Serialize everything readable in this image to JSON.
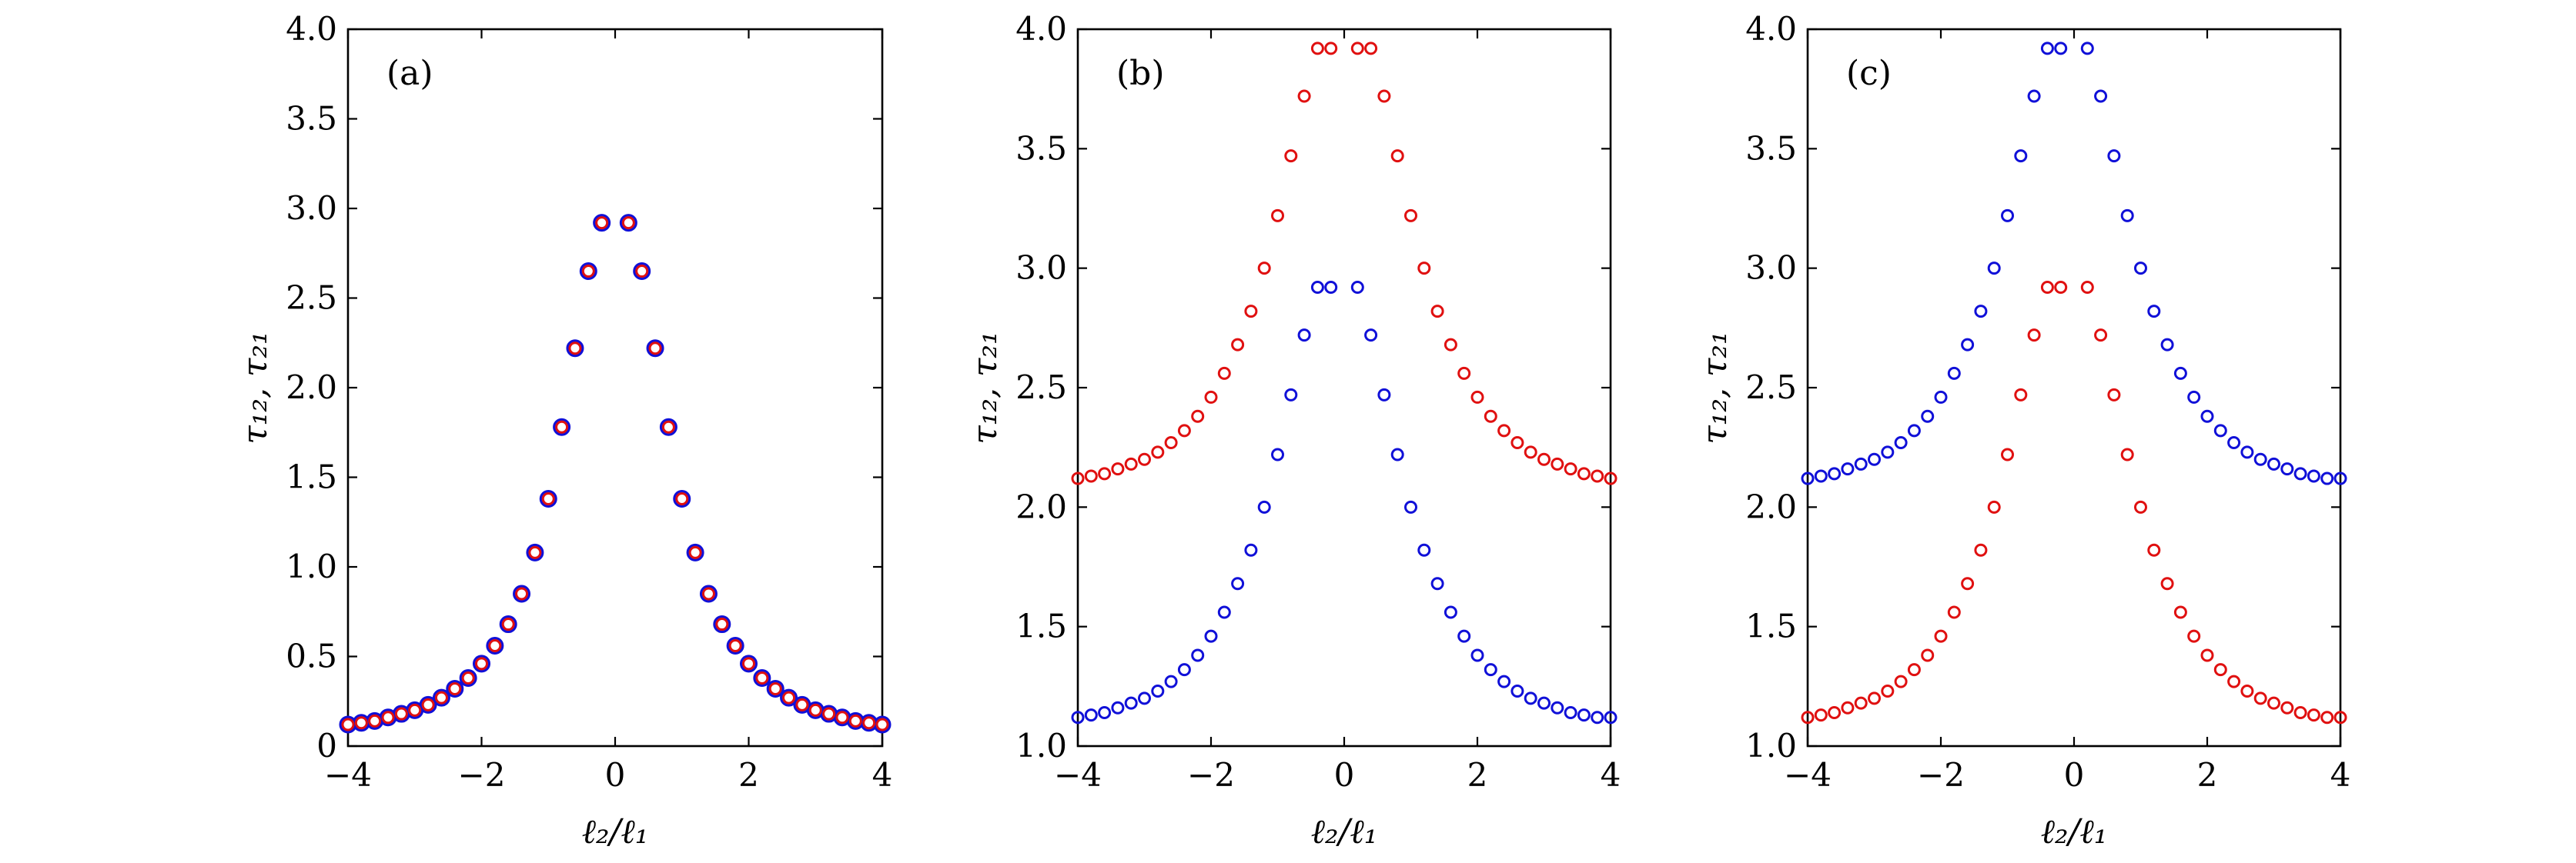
{
  "colors": {
    "blue": "#1010d8",
    "red": "#e01010"
  },
  "chart_data": [
    {
      "type": "scatter",
      "panel_label": "(a)",
      "xlabel": "ℓ₂/ℓ₁",
      "ylabel": "τ₁₂, τ₂₁",
      "xlim": [
        -4,
        4
      ],
      "ylim": [
        0,
        4
      ],
      "xticks": [
        -4,
        -2,
        0,
        2,
        4
      ],
      "xtick_labels": [
        "−4",
        "−2",
        "0",
        "2",
        "4"
      ],
      "yticks": [
        0,
        0.5,
        1.0,
        1.5,
        2.0,
        2.5,
        3.0,
        3.5,
        4.0
      ],
      "ytick_labels": [
        "0",
        "0.5",
        "1.0",
        "1.5",
        "2.0",
        "2.5",
        "3.0",
        "3.5",
        "4.0"
      ],
      "grid": false,
      "series": [
        {
          "marker": "open-circle-thick",
          "color": "blue",
          "x": [
            -4.0,
            -3.8,
            -3.6,
            -3.4,
            -3.2,
            -3.0,
            -2.8,
            -2.6,
            -2.4,
            -2.2,
            -2.0,
            -1.8,
            -1.6,
            -1.4,
            -1.2,
            -1.0,
            -0.8,
            -0.6,
            -0.4,
            -0.2,
            0.2,
            0.4,
            0.6,
            0.8,
            1.0,
            1.2,
            1.4,
            1.6,
            1.8,
            2.0,
            2.2,
            2.4,
            2.6,
            2.8,
            3.0,
            3.2,
            3.4,
            3.6,
            3.8,
            4.0
          ],
          "y": [
            0.12,
            0.13,
            0.14,
            0.16,
            0.18,
            0.2,
            0.23,
            0.27,
            0.32,
            0.38,
            0.46,
            0.56,
            0.68,
            0.85,
            1.08,
            1.38,
            1.78,
            2.22,
            2.65,
            2.92,
            2.92,
            2.65,
            2.22,
            1.78,
            1.38,
            1.08,
            0.85,
            0.68,
            0.56,
            0.46,
            0.38,
            0.32,
            0.27,
            0.23,
            0.2,
            0.18,
            0.16,
            0.14,
            0.13,
            0.12
          ]
        },
        {
          "marker": "open-circle-thin",
          "color": "red",
          "x": [
            -4.0,
            -3.8,
            -3.6,
            -3.4,
            -3.2,
            -3.0,
            -2.8,
            -2.6,
            -2.4,
            -2.2,
            -2.0,
            -1.8,
            -1.6,
            -1.4,
            -1.2,
            -1.0,
            -0.8,
            -0.6,
            -0.4,
            -0.2,
            0.2,
            0.4,
            0.6,
            0.8,
            1.0,
            1.2,
            1.4,
            1.6,
            1.8,
            2.0,
            2.2,
            2.4,
            2.6,
            2.8,
            3.0,
            3.2,
            3.4,
            3.6,
            3.8,
            4.0
          ],
          "y": [
            0.12,
            0.13,
            0.14,
            0.16,
            0.18,
            0.2,
            0.23,
            0.27,
            0.32,
            0.38,
            0.46,
            0.56,
            0.68,
            0.85,
            1.08,
            1.38,
            1.78,
            2.22,
            2.65,
            2.92,
            2.92,
            2.65,
            2.22,
            1.78,
            1.38,
            1.08,
            0.85,
            0.68,
            0.56,
            0.46,
            0.38,
            0.32,
            0.27,
            0.23,
            0.2,
            0.18,
            0.16,
            0.14,
            0.13,
            0.12
          ]
        }
      ]
    },
    {
      "type": "scatter",
      "panel_label": "(b)",
      "xlabel": "ℓ₂/ℓ₁",
      "ylabel": "τ₁₂, τ₂₁",
      "xlim": [
        -4,
        4
      ],
      "ylim": [
        1.0,
        4.0
      ],
      "xticks": [
        -4,
        -2,
        0,
        2,
        4
      ],
      "xtick_labels": [
        "−4",
        "−2",
        "0",
        "2",
        "4"
      ],
      "yticks": [
        1.0,
        1.5,
        2.0,
        2.5,
        3.0,
        3.5,
        4.0
      ],
      "ytick_labels": [
        "1.0",
        "1.5",
        "2.0",
        "2.5",
        "3.0",
        "3.5",
        "4.0"
      ],
      "grid": false,
      "series": [
        {
          "marker": "open-circle-thin",
          "color": "red",
          "x": [
            -4.0,
            -3.8,
            -3.6,
            -3.4,
            -3.2,
            -3.0,
            -2.8,
            -2.6,
            -2.4,
            -2.2,
            -2.0,
            -1.8,
            -1.6,
            -1.4,
            -1.2,
            -1.0,
            -0.8,
            -0.6,
            -0.4,
            -0.2,
            0.2,
            0.4,
            0.6,
            0.8,
            1.0,
            1.2,
            1.4,
            1.6,
            1.8,
            2.0,
            2.2,
            2.4,
            2.6,
            2.8,
            3.0,
            3.2,
            3.4,
            3.6,
            3.8,
            4.0
          ],
          "y": [
            2.12,
            2.13,
            2.14,
            2.16,
            2.18,
            2.2,
            2.23,
            2.27,
            2.32,
            2.38,
            2.46,
            2.56,
            2.68,
            2.82,
            3.0,
            3.22,
            3.47,
            3.72,
            3.92,
            3.92,
            3.92,
            3.92,
            3.72,
            3.47,
            3.22,
            3.0,
            2.82,
            2.68,
            2.56,
            2.46,
            2.38,
            2.32,
            2.27,
            2.23,
            2.2,
            2.18,
            2.16,
            2.14,
            2.13,
            2.12
          ]
        },
        {
          "marker": "open-circle-thin",
          "color": "blue",
          "x": [
            -4.0,
            -3.8,
            -3.6,
            -3.4,
            -3.2,
            -3.0,
            -2.8,
            -2.6,
            -2.4,
            -2.2,
            -2.0,
            -1.8,
            -1.6,
            -1.4,
            -1.2,
            -1.0,
            -0.8,
            -0.6,
            -0.4,
            -0.2,
            0.2,
            0.4,
            0.6,
            0.8,
            1.0,
            1.2,
            1.4,
            1.6,
            1.8,
            2.0,
            2.2,
            2.4,
            2.6,
            2.8,
            3.0,
            3.2,
            3.4,
            3.6,
            3.8,
            4.0
          ],
          "y": [
            1.12,
            1.13,
            1.14,
            1.16,
            1.18,
            1.2,
            1.23,
            1.27,
            1.32,
            1.38,
            1.46,
            1.56,
            1.68,
            1.82,
            2.0,
            2.22,
            2.47,
            2.72,
            2.92,
            2.92,
            2.92,
            2.72,
            2.47,
            2.22,
            2.0,
            1.82,
            1.68,
            1.56,
            1.46,
            1.38,
            1.32,
            1.27,
            1.23,
            1.2,
            1.18,
            1.16,
            1.14,
            1.13,
            1.12,
            1.12
          ]
        }
      ]
    },
    {
      "type": "scatter",
      "panel_label": "(c)",
      "xlabel": "ℓ₂/ℓ₁",
      "ylabel": "τ₁₂, τ₂₁",
      "xlim": [
        -4,
        4
      ],
      "ylim": [
        1.0,
        4.0
      ],
      "xticks": [
        -4,
        -2,
        0,
        2,
        4
      ],
      "xtick_labels": [
        "−4",
        "−2",
        "0",
        "2",
        "4"
      ],
      "yticks": [
        1.0,
        1.5,
        2.0,
        2.5,
        3.0,
        3.5,
        4.0
      ],
      "ytick_labels": [
        "1.0",
        "1.5",
        "2.0",
        "2.5",
        "3.0",
        "3.5",
        "4.0"
      ],
      "grid": false,
      "series": [
        {
          "marker": "open-circle-thin",
          "color": "blue",
          "x": [
            -4.0,
            -3.8,
            -3.6,
            -3.4,
            -3.2,
            -3.0,
            -2.8,
            -2.6,
            -2.4,
            -2.2,
            -2.0,
            -1.8,
            -1.6,
            -1.4,
            -1.2,
            -1.0,
            -0.8,
            -0.6,
            -0.4,
            -0.2,
            0.2,
            0.4,
            0.6,
            0.8,
            1.0,
            1.2,
            1.4,
            1.6,
            1.8,
            2.0,
            2.2,
            2.4,
            2.6,
            2.8,
            3.0,
            3.2,
            3.4,
            3.6,
            3.8,
            4.0
          ],
          "y": [
            2.12,
            2.13,
            2.14,
            2.16,
            2.18,
            2.2,
            2.23,
            2.27,
            2.32,
            2.38,
            2.46,
            2.56,
            2.68,
            2.82,
            3.0,
            3.22,
            3.47,
            3.72,
            3.92,
            3.92,
            3.92,
            3.72,
            3.47,
            3.22,
            3.0,
            2.82,
            2.68,
            2.56,
            2.46,
            2.38,
            2.32,
            2.27,
            2.23,
            2.2,
            2.18,
            2.16,
            2.14,
            2.13,
            2.12,
            2.12
          ]
        },
        {
          "marker": "open-circle-thin",
          "color": "red",
          "x": [
            -4.0,
            -3.8,
            -3.6,
            -3.4,
            -3.2,
            -3.0,
            -2.8,
            -2.6,
            -2.4,
            -2.2,
            -2.0,
            -1.8,
            -1.6,
            -1.4,
            -1.2,
            -1.0,
            -0.8,
            -0.6,
            -0.4,
            -0.2,
            0.2,
            0.4,
            0.6,
            0.8,
            1.0,
            1.2,
            1.4,
            1.6,
            1.8,
            2.0,
            2.2,
            2.4,
            2.6,
            2.8,
            3.0,
            3.2,
            3.4,
            3.6,
            3.8,
            4.0
          ],
          "y": [
            1.12,
            1.13,
            1.14,
            1.16,
            1.18,
            1.2,
            1.23,
            1.27,
            1.32,
            1.38,
            1.46,
            1.56,
            1.68,
            1.82,
            2.0,
            2.22,
            2.47,
            2.72,
            2.92,
            2.92,
            2.92,
            2.72,
            2.47,
            2.22,
            2.0,
            1.82,
            1.68,
            1.56,
            1.46,
            1.38,
            1.32,
            1.27,
            1.23,
            1.2,
            1.18,
            1.16,
            1.14,
            1.13,
            1.12,
            1.12
          ]
        }
      ]
    }
  ]
}
